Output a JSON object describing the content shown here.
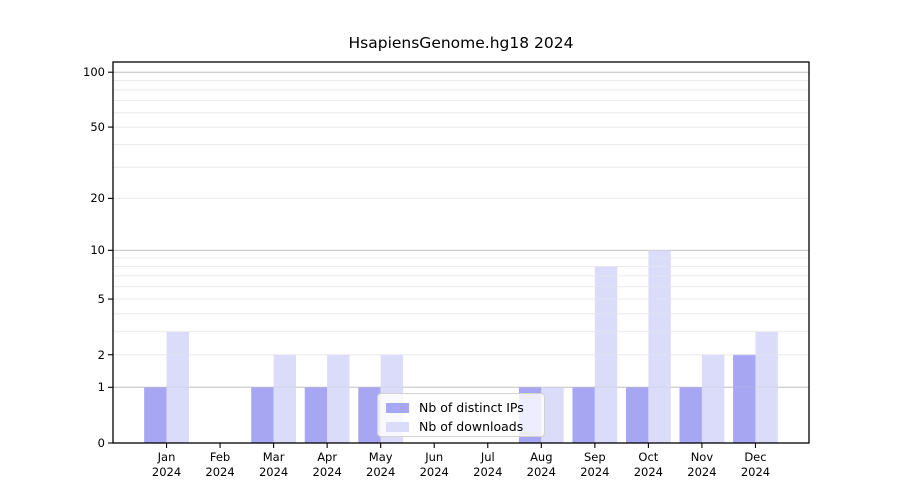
{
  "title": "HsapiensGenome.hg18 2024",
  "chart_data": {
    "type": "bar",
    "title": "HsapiensGenome.hg18 2024",
    "categories": [
      "Jan",
      "Feb",
      "Mar",
      "Apr",
      "May",
      "Jun",
      "Jul",
      "Aug",
      "Sep",
      "Oct",
      "Nov",
      "Dec"
    ],
    "year_label": "2024",
    "series": [
      {
        "name": "Nb of distinct IPs",
        "color": "#a6a6f2",
        "values": [
          1,
          0,
          1,
          1,
          1,
          0,
          0,
          1,
          1,
          1,
          1,
          2
        ]
      },
      {
        "name": "Nb of downloads",
        "color": "#dbdbfa",
        "values": [
          3,
          0,
          2,
          2,
          2,
          0,
          0,
          1,
          8,
          10,
          2,
          3
        ]
      }
    ],
    "y_scale": "log1p",
    "y_ticks": [
      0,
      1,
      2,
      5,
      10,
      20,
      50,
      100
    ],
    "grid_light_values": [
      2,
      3,
      4,
      5,
      6,
      7,
      8,
      9,
      20,
      30,
      40,
      50,
      60,
      70,
      80,
      90
    ],
    "grid_dark_values": [
      1,
      10,
      100
    ],
    "grid": true,
    "legend_position": "lower center inside"
  },
  "legend": {
    "items": [
      {
        "label": "Nb of distinct IPs",
        "color": "#a6a6f2"
      },
      {
        "label": "Nb of downloads",
        "color": "#dbdbfa"
      }
    ]
  },
  "colors": {
    "background": "#ffffff",
    "frame": "#000000",
    "grid_major": "#c4c4c4",
    "grid_minor": "#ececec",
    "text": "#000000"
  }
}
